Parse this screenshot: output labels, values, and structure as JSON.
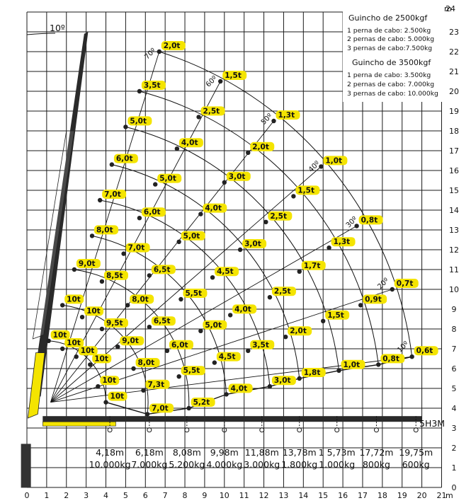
{
  "chart_data": {
    "type": "scatter",
    "title": "",
    "x_unit_label": "m",
    "y_unit_label": "m",
    "xlim": [
      0,
      21
    ],
    "ylim": [
      0,
      24
    ],
    "grid": true,
    "x_ticks": [
      "0",
      "1",
      "2",
      "3",
      "4",
      "5",
      "6",
      "7",
      "8",
      "9",
      "10",
      "11",
      "12",
      "13",
      "14",
      "15",
      "16",
      "17",
      "18",
      "19",
      "20",
      "21"
    ],
    "y_ticks": [
      "0",
      "1",
      "2",
      "3",
      "4",
      "5",
      "6",
      "7",
      "8",
      "9",
      "10",
      "11",
      "12",
      "13",
      "14",
      "15",
      "16",
      "17",
      "18",
      "19",
      "20",
      "21",
      "22",
      "23",
      "24"
    ],
    "boom_angle_label": "10º",
    "boom_tip": [
      3,
      23
    ],
    "pivot": [
      1.2,
      4.3
    ],
    "angle_labels": [
      {
        "text": "70º",
        "x": 6.1,
        "y": 21.6
      },
      {
        "text": "60º",
        "x": 9.2,
        "y": 20.2
      },
      {
        "text": "50º",
        "x": 12.0,
        "y": 18.3
      },
      {
        "text": "40º",
        "x": 14.4,
        "y": 15.9
      },
      {
        "text": "30º",
        "x": 16.3,
        "y": 13.1
      },
      {
        "text": "20º",
        "x": 17.9,
        "y": 10.0
      },
      {
        "text": "10º",
        "x": 18.9,
        "y": 6.8
      }
    ],
    "capacity_points": [
      {
        "label": "2,0t",
        "x": 6.7,
        "y": 22.0
      },
      {
        "label": "1,5t",
        "x": 9.8,
        "y": 20.5
      },
      {
        "label": "1,3t",
        "x": 12.5,
        "y": 18.5
      },
      {
        "label": "1,0t",
        "x": 14.9,
        "y": 16.2
      },
      {
        "label": "0,8t",
        "x": 16.7,
        "y": 13.2
      },
      {
        "label": "0,7t",
        "x": 18.5,
        "y": 10.0
      },
      {
        "label": "0,6t",
        "x": 19.5,
        "y": 6.6
      },
      {
        "label": "3,5t",
        "x": 5.7,
        "y": 20.0
      },
      {
        "label": "2,5t",
        "x": 8.7,
        "y": 18.7
      },
      {
        "label": "2,0t",
        "x": 11.2,
        "y": 16.9
      },
      {
        "label": "1,5t",
        "x": 13.5,
        "y": 14.7
      },
      {
        "label": "1,3t",
        "x": 15.3,
        "y": 12.1
      },
      {
        "label": "0,9t",
        "x": 16.9,
        "y": 9.2
      },
      {
        "label": "0,8t",
        "x": 17.8,
        "y": 6.2
      },
      {
        "label": "5,0t",
        "x": 5.0,
        "y": 18.2
      },
      {
        "label": "4,0t",
        "x": 7.6,
        "y": 17.1
      },
      {
        "label": "3,0t",
        "x": 10.0,
        "y": 15.4
      },
      {
        "label": "2,5t",
        "x": 12.1,
        "y": 13.4
      },
      {
        "label": "1,7t",
        "x": 13.8,
        "y": 10.9
      },
      {
        "label": "1,5t",
        "x": 15.0,
        "y": 8.4
      },
      {
        "label": "1,0t",
        "x": 15.8,
        "y": 5.9
      },
      {
        "label": "6,0t",
        "x": 4.3,
        "y": 16.3
      },
      {
        "label": "5,0t",
        "x": 6.5,
        "y": 15.3
      },
      {
        "label": "4,0t",
        "x": 8.8,
        "y": 13.8
      },
      {
        "label": "3,0t",
        "x": 10.8,
        "y": 12.0
      },
      {
        "label": "2,5t",
        "x": 12.3,
        "y": 9.6
      },
      {
        "label": "2,0t",
        "x": 13.1,
        "y": 7.6
      },
      {
        "label": "1,8t",
        "x": 13.8,
        "y": 5.5
      },
      {
        "label": "7,0t",
        "x": 3.7,
        "y": 14.5
      },
      {
        "label": "6,0t",
        "x": 5.7,
        "y": 13.6
      },
      {
        "label": "5,0t",
        "x": 7.7,
        "y": 12.4
      },
      {
        "label": "4,5t",
        "x": 9.4,
        "y": 10.6
      },
      {
        "label": "4,0t",
        "x": 10.3,
        "y": 8.7
      },
      {
        "label": "3,5t",
        "x": 11.2,
        "y": 6.9
      },
      {
        "label": "3,0t",
        "x": 12.3,
        "y": 5.1
      },
      {
        "label": "8,0t",
        "x": 3.3,
        "y": 12.7
      },
      {
        "label": "7,0t",
        "x": 4.9,
        "y": 11.8
      },
      {
        "label": "6,5t",
        "x": 6.2,
        "y": 10.7
      },
      {
        "label": "5,5t",
        "x": 7.8,
        "y": 9.5
      },
      {
        "label": "5,0t",
        "x": 8.8,
        "y": 7.9
      },
      {
        "label": "4,5t",
        "x": 9.5,
        "y": 6.3
      },
      {
        "label": "4,0t",
        "x": 10.1,
        "y": 4.7
      },
      {
        "label": "9,0t",
        "x": 2.4,
        "y": 11.0
      },
      {
        "label": "8,5t",
        "x": 3.8,
        "y": 10.4
      },
      {
        "label": "8,0t",
        "x": 5.1,
        "y": 9.2
      },
      {
        "label": "6,5t",
        "x": 6.2,
        "y": 8.1
      },
      {
        "label": "6,0t",
        "x": 7.1,
        "y": 6.9
      },
      {
        "label": "5,5t",
        "x": 7.7,
        "y": 5.6
      },
      {
        "label": "5,2t",
        "x": 8.2,
        "y": 4.0
      },
      {
        "label": "10t",
        "x": 1.8,
        "y": 9.2
      },
      {
        "label": "10t",
        "x": 2.8,
        "y": 8.6
      },
      {
        "label": "9,5t",
        "x": 3.8,
        "y": 8.0
      },
      {
        "label": "9,0t",
        "x": 4.6,
        "y": 7.1
      },
      {
        "label": "8,0t",
        "x": 5.4,
        "y": 6.0
      },
      {
        "label": "7,3t",
        "x": 5.9,
        "y": 4.9
      },
      {
        "label": "7,0t",
        "x": 6.1,
        "y": 3.7
      },
      {
        "label": "10t",
        "x": 1.1,
        "y": 7.4
      },
      {
        "label": "10t",
        "x": 1.8,
        "y": 7.0
      },
      {
        "label": "10t",
        "x": 2.5,
        "y": 6.6
      },
      {
        "label": "10t",
        "x": 3.2,
        "y": 6.2
      },
      {
        "label": "10t",
        "x": 3.6,
        "y": 5.1
      },
      {
        "label": "10t",
        "x": 4.0,
        "y": 4.3
      }
    ],
    "reach_table": [
      {
        "x": 4.2,
        "reach": "4,18m",
        "capacity": "10.000kg"
      },
      {
        "x": 6.2,
        "reach": "6,18m",
        "capacity": "7.000kg"
      },
      {
        "x": 8.1,
        "reach": "8,08m",
        "capacity": "5.200kg"
      },
      {
        "x": 10.0,
        "reach": "9,98m",
        "capacity": "4.000kg"
      },
      {
        "x": 11.9,
        "reach": "11,88m",
        "capacity": "3.000kg"
      },
      {
        "x": 13.8,
        "reach": "13,78m",
        "capacity": "1.800kg"
      },
      {
        "x": 15.7,
        "reach": "1 5,73m",
        "capacity": "1.000kg"
      },
      {
        "x": 17.7,
        "reach": "17,72m",
        "capacity": "800kg"
      },
      {
        "x": 19.7,
        "reach": "19,75m",
        "capacity": "600kg"
      }
    ],
    "extension_label": "5H3M"
  },
  "legend": {
    "winch_2500": {
      "title": "Guincho de 2500kgf",
      "lines": [
        "1 perna de cabo: 2.500kg",
        "2 pernas de cabo: 5.000kg",
        "3 pernas de cabo:7.500kg"
      ]
    },
    "winch_3500": {
      "title": "Guincho de 3500kgf",
      "lines": [
        "1 perna de cabo: 3.500kg",
        "2 pernas de cabo: 7.000kg",
        "3 pernas de cabo: 10.000kg"
      ]
    }
  },
  "colors": {
    "boom_yellow": "#f4e400",
    "boom_dark": "#2a2a2a",
    "grid": "#1a1a1a",
    "label_bg": "#f4e400"
  }
}
